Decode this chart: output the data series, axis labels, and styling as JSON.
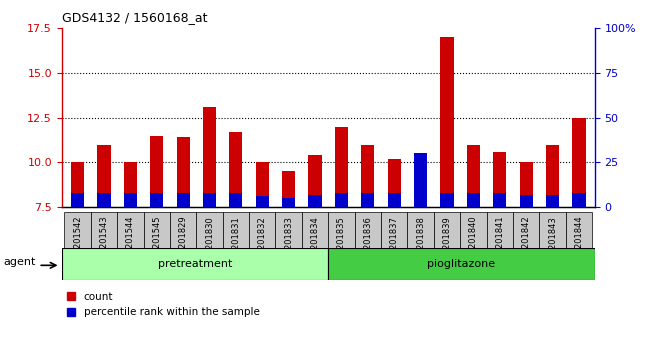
{
  "title": "GDS4132 / 1560168_at",
  "samples": [
    "GSM201542",
    "GSM201543",
    "GSM201544",
    "GSM201545",
    "GSM201829",
    "GSM201830",
    "GSM201831",
    "GSM201832",
    "GSM201833",
    "GSM201834",
    "GSM201835",
    "GSM201836",
    "GSM201837",
    "GSM201838",
    "GSM201839",
    "GSM201840",
    "GSM201841",
    "GSM201842",
    "GSM201843",
    "GSM201844"
  ],
  "count_values": [
    10.0,
    11.0,
    10.0,
    11.5,
    11.4,
    13.1,
    11.7,
    10.0,
    9.5,
    10.4,
    12.0,
    11.0,
    10.2,
    10.0,
    17.0,
    11.0,
    10.6,
    10.0,
    11.0,
    12.5
  ],
  "percentile_values": [
    8,
    8,
    8,
    8,
    8,
    8,
    8,
    6,
    5,
    7,
    8,
    8,
    8,
    30,
    8,
    8,
    8,
    7,
    7,
    8
  ],
  "baseline": 7.5,
  "ylim_left": [
    7.5,
    17.5
  ],
  "yticks_left": [
    7.5,
    10.0,
    12.5,
    15.0,
    17.5
  ],
  "ylim_right": [
    0,
    100
  ],
  "yticks_right": [
    0,
    25,
    50,
    75,
    100
  ],
  "yticklabels_right": [
    "0",
    "25",
    "50",
    "75",
    "100%"
  ],
  "bar_color_red": "#cc0000",
  "bar_color_blue": "#0000cc",
  "bar_width": 0.5,
  "n_pretreatment": 10,
  "pretreatment_label": "pretreatment",
  "pioglitazone_label": "pioglitazone",
  "agent_label": "agent",
  "legend_count": "count",
  "legend_percentile": "percentile rank within the sample",
  "grid_color": "#000000",
  "bg_plot": "#ffffff",
  "bg_xticklabel": "#c8c8c8",
  "bg_group_pretreatment": "#aaffaa",
  "bg_group_pioglitazone": "#44cc44",
  "left_axis_color": "#cc0000",
  "right_axis_color": "#0000cc"
}
